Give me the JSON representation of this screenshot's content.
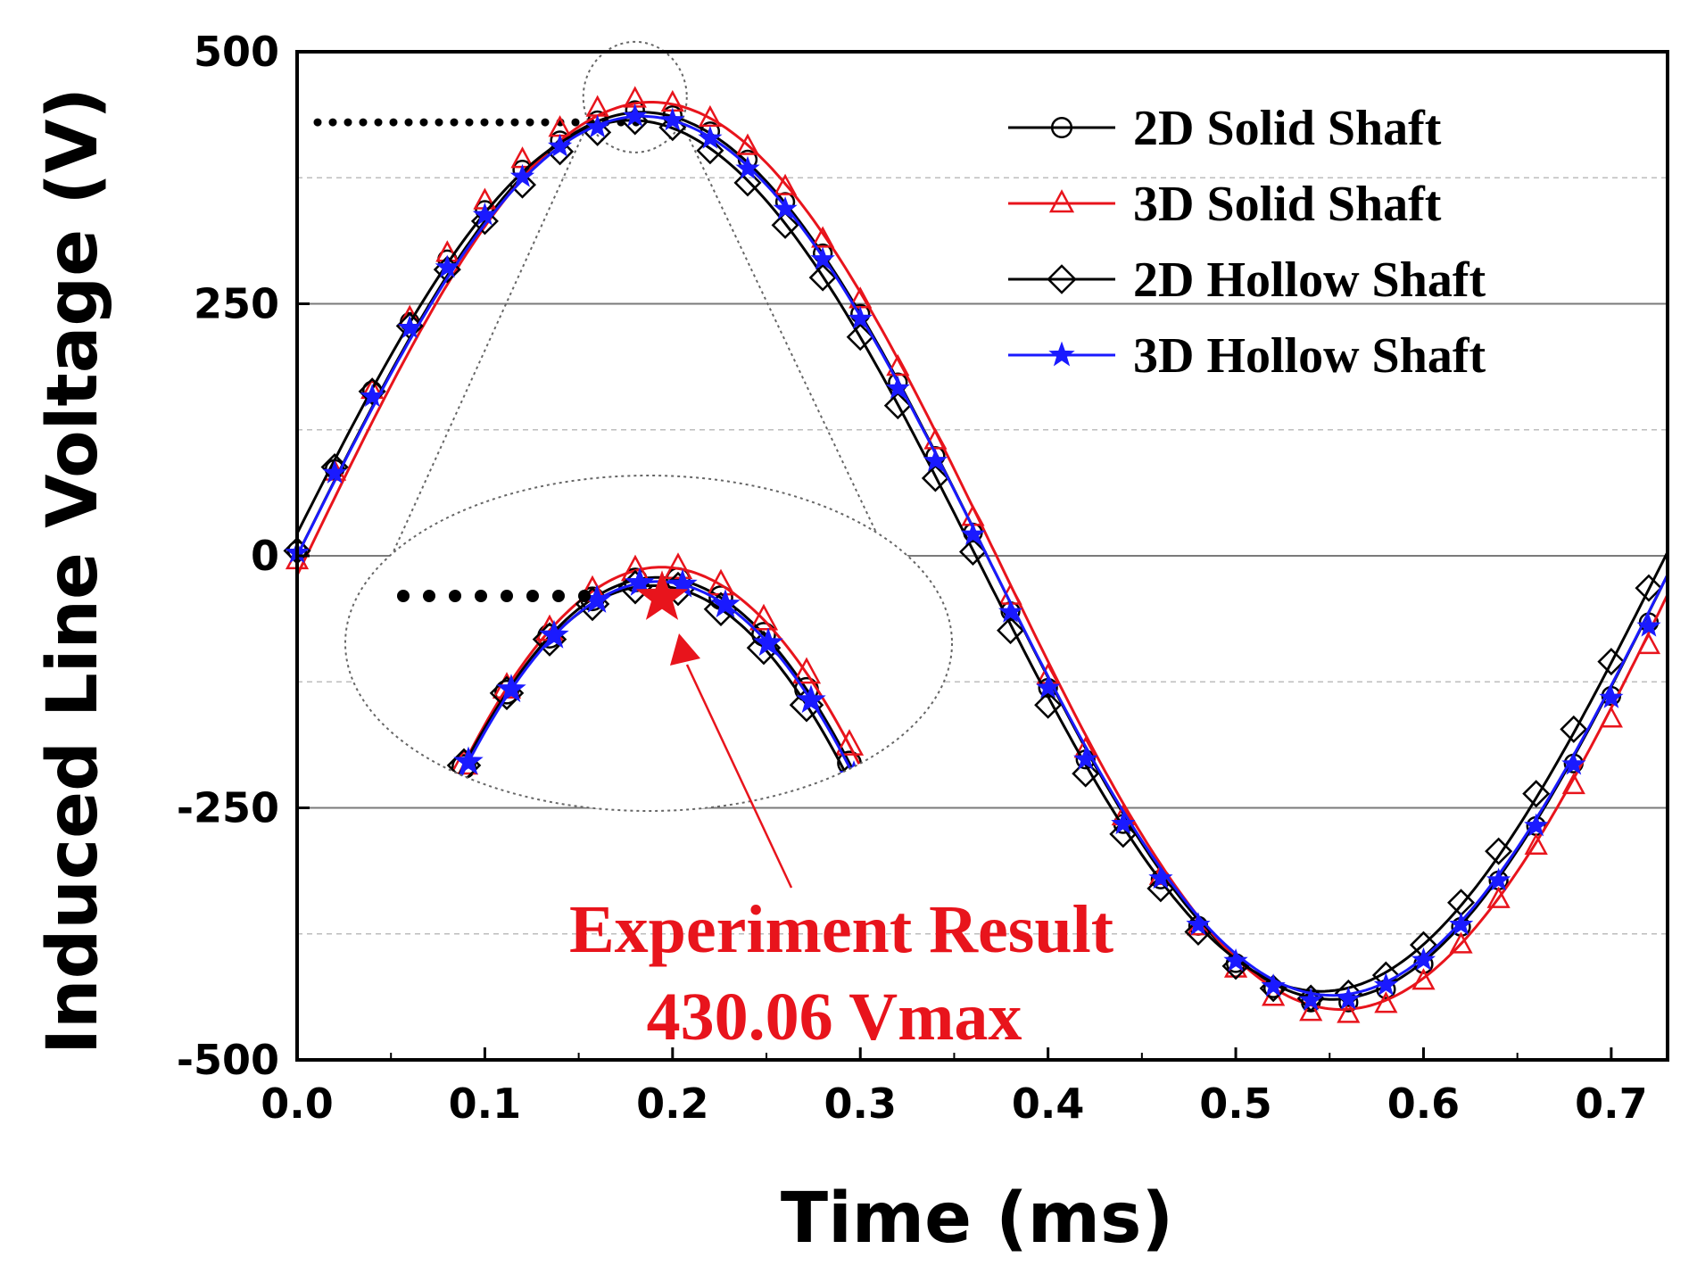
{
  "chart_data": {
    "type": "line",
    "title": "",
    "xlabel": "Time (ms)",
    "ylabel": "Induced Line Voltage (V)",
    "xlim": [
      0.0,
      0.73
    ],
    "ylim": [
      -500,
      500
    ],
    "xticks": [
      0.0,
      0.1,
      0.2,
      0.3,
      0.4,
      0.5,
      0.6,
      0.7
    ],
    "xtick_labels": [
      "0.0",
      "0.1",
      "0.2",
      "0.3",
      "0.4",
      "0.5",
      "0.6",
      "0.7"
    ],
    "yticks": [
      500,
      250,
      0,
      -250,
      -500
    ],
    "ytick_labels": [
      "500",
      "250",
      "0",
      "-250",
      "-500"
    ],
    "major_grid_y": [
      250,
      0,
      -250
    ],
    "minor_grid_y": [
      375,
      125,
      -125,
      -375
    ],
    "legend_position": "top-right",
    "series": [
      {
        "name": "2D Solid Shaft",
        "color": "#000000",
        "marker": "circle",
        "amplitude": 440,
        "phase_shift": 0.0,
        "x": [
          0,
          0.02,
          0.04,
          0.06,
          0.08,
          0.1,
          0.12,
          0.14,
          0.16,
          0.18,
          0.2,
          0.22,
          0.24,
          0.26,
          0.28,
          0.3,
          0.32,
          0.34,
          0.36,
          0.38,
          0.4,
          0.42,
          0.44,
          0.46,
          0.48,
          0.5,
          0.52,
          0.54,
          0.56,
          0.58,
          0.6,
          0.62,
          0.64,
          0.66,
          0.68,
          0.7,
          0.72
        ],
        "y": [
          5,
          86,
          164,
          232,
          294,
          343,
          383,
          412,
          432,
          442,
          437,
          421,
          393,
          351,
          300,
          240,
          172,
          99,
          23,
          -55,
          -131,
          -202,
          -266,
          -321,
          -367,
          -404,
          -429,
          -443,
          -443,
          -430,
          -405,
          -368,
          -322,
          -268,
          -206,
          -139,
          -66
        ]
      },
      {
        "name": "3D Solid Shaft",
        "color": "#e8141c",
        "marker": "triangle",
        "amplitude": 450,
        "phase_shift": 0.005,
        "x": [
          0,
          0.02,
          0.04,
          0.06,
          0.08,
          0.1,
          0.12,
          0.14,
          0.16,
          0.18,
          0.2,
          0.22,
          0.24,
          0.26,
          0.28,
          0.3,
          0.32,
          0.34,
          0.36,
          0.38,
          0.4,
          0.42,
          0.44,
          0.46,
          0.48,
          0.5,
          0.52,
          0.54,
          0.56,
          0.58,
          0.6,
          0.62,
          0.64,
          0.66,
          0.68,
          0.7,
          0.72
        ],
        "y": [
          -5,
          83,
          164,
          236,
          300,
          352,
          393,
          424,
          444,
          453,
          449,
          434,
          406,
          366,
          314,
          254,
          187,
          114,
          38,
          -40,
          -119,
          -192,
          -259,
          -318,
          -368,
          -410,
          -438,
          -453,
          -455,
          -445,
          -422,
          -386,
          -341,
          -288,
          -228,
          -162,
          -89
        ]
      },
      {
        "name": "2D Hollow Shaft",
        "color": "#000000",
        "marker": "diamond",
        "amplitude": 432,
        "phase_shift": -0.006,
        "x": [
          0,
          0.02,
          0.04,
          0.06,
          0.08,
          0.1,
          0.12,
          0.14,
          0.16,
          0.18,
          0.2,
          0.22,
          0.24,
          0.26,
          0.28,
          0.3,
          0.32,
          0.34,
          0.36,
          0.38,
          0.4,
          0.42,
          0.44,
          0.46,
          0.48,
          0.5,
          0.52,
          0.54,
          0.56,
          0.58,
          0.6,
          0.62,
          0.64,
          0.66,
          0.68,
          0.7,
          0.72
        ],
        "y": [
          5,
          88,
          163,
          228,
          284,
          332,
          368,
          401,
          420,
          431,
          425,
          402,
          370,
          328,
          276,
          217,
          149,
          77,
          4,
          -74,
          -148,
          -216,
          -276,
          -330,
          -373,
          -407,
          -429,
          -439,
          -434,
          -416,
          -386,
          -344,
          -293,
          -236,
          -172,
          -105,
          -32
        ]
      },
      {
        "name": "3D Hollow Shaft",
        "color": "#1a1aff",
        "marker": "star",
        "amplitude": 436,
        "phase_shift": 0.0,
        "x": [
          0,
          0.02,
          0.04,
          0.06,
          0.08,
          0.1,
          0.12,
          0.14,
          0.16,
          0.18,
          0.2,
          0.22,
          0.24,
          0.26,
          0.28,
          0.3,
          0.32,
          0.34,
          0.36,
          0.38,
          0.4,
          0.42,
          0.44,
          0.46,
          0.48,
          0.5,
          0.52,
          0.54,
          0.56,
          0.58,
          0.6,
          0.62,
          0.64,
          0.66,
          0.68,
          0.7,
          0.72
        ],
        "y": [
          3,
          82,
          158,
          226,
          286,
          338,
          376,
          406,
          425,
          436,
          432,
          414,
          384,
          344,
          294,
          235,
          166,
          94,
          21,
          -56,
          -131,
          -202,
          -266,
          -320,
          -366,
          -402,
          -427,
          -441,
          -440,
          -426,
          -401,
          -366,
          -322,
          -268,
          -207,
          -141,
          -70
        ]
      }
    ],
    "zoom_inset": {
      "description_free": true,
      "source_xrange": [
        0.155,
        0.205
      ],
      "reference_line_y": 430,
      "reference_x_end": 0.183
    },
    "annotations": [
      {
        "text_line1": "Experiment  Result",
        "text_line2": "430.06 Vmax",
        "color": "#e8141c",
        "value": 430.06
      }
    ]
  }
}
